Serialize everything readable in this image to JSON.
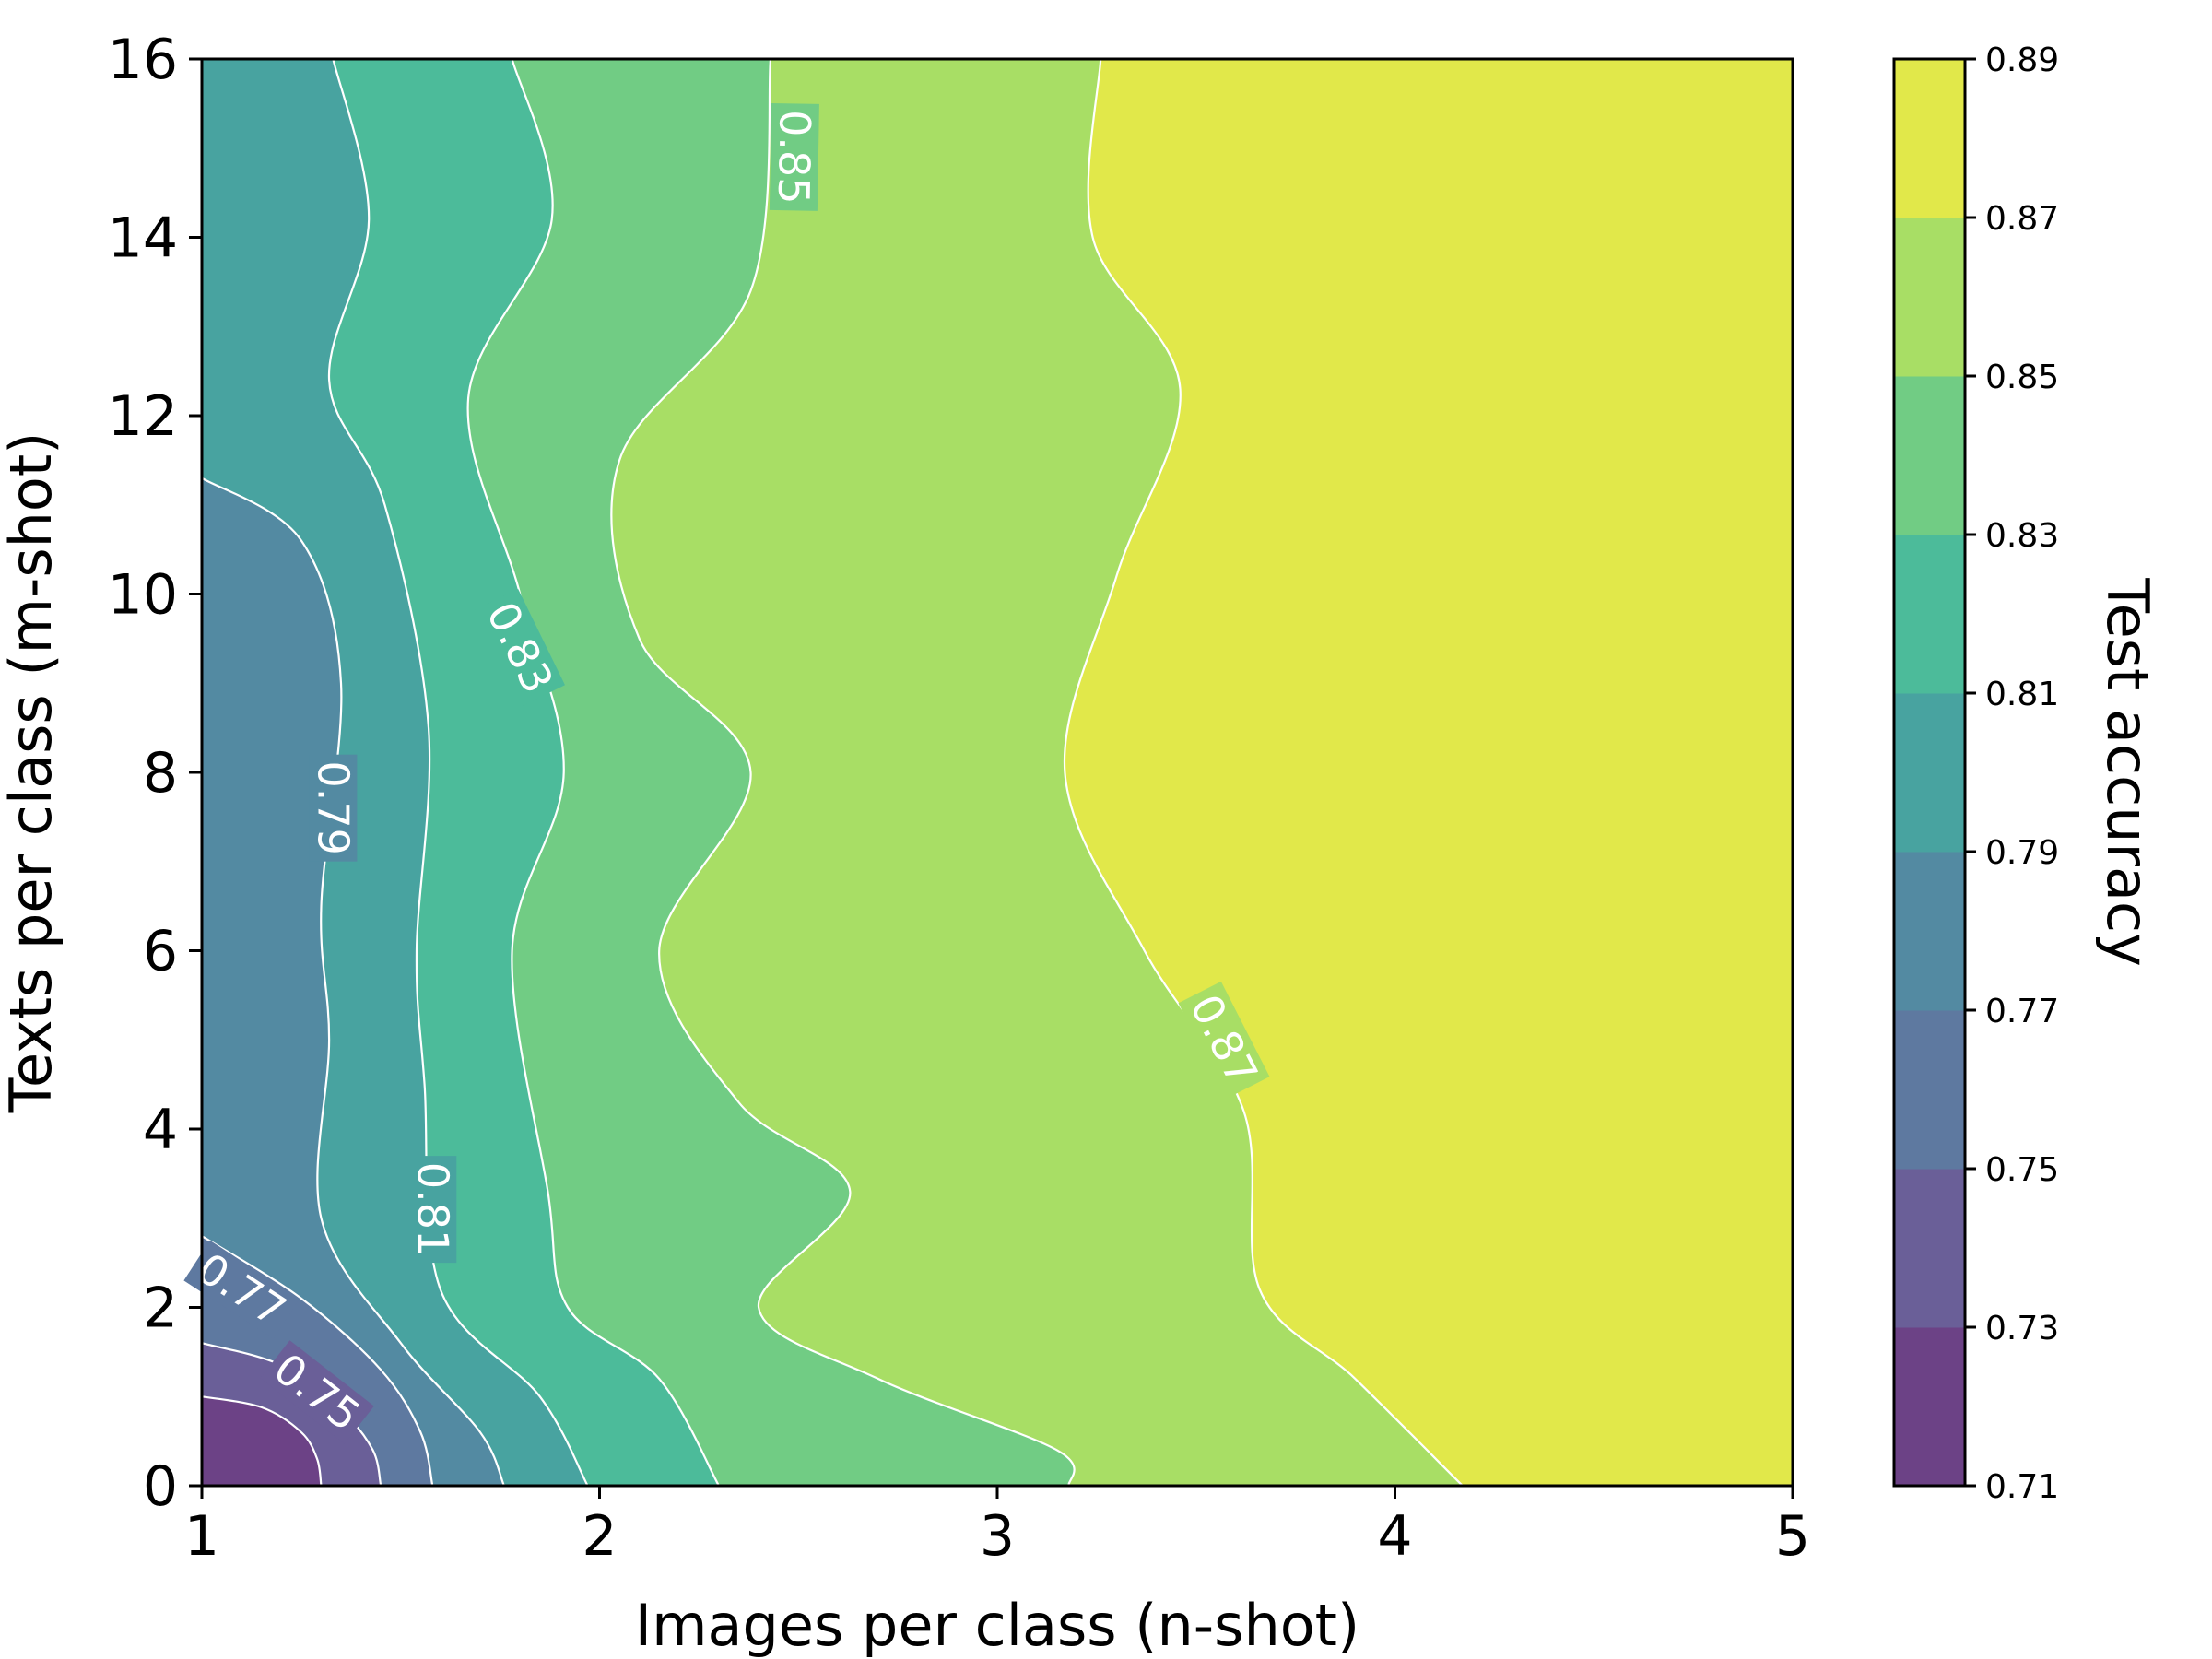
{
  "chart_data": {
    "type": "contour",
    "xlabel": "Images per class (n-shot)",
    "ylabel": "Texts per class (m-shot)",
    "colorbar_label": "Test accuracy",
    "xlim": [
      1,
      5
    ],
    "ylim": [
      0,
      16
    ],
    "x_ticks": [
      "1",
      "2",
      "3",
      "4",
      "5"
    ],
    "y_ticks": [
      "0",
      "2",
      "4",
      "6",
      "8",
      "10",
      "12",
      "14",
      "16"
    ],
    "levels": [
      0.71,
      0.73,
      0.75,
      0.77,
      0.79,
      0.81,
      0.83,
      0.85,
      0.87,
      0.89
    ],
    "level_labels": [
      "0.71",
      "0.73",
      "0.75",
      "0.77",
      "0.79",
      "0.81",
      "0.83",
      "0.85",
      "0.87",
      "0.89"
    ],
    "band_colors": [
      "#6c4286",
      "#6a5f98",
      "#5e79a0",
      "#538aa2",
      "#48a3a0",
      "#4cbb9a",
      "#71cc84",
      "#a8de65",
      "#e1e84a"
    ],
    "contour_lines": [
      {
        "level": 0.73,
        "points": [
          [
            1.0,
            1.0
          ],
          [
            1.15,
            0.88
          ],
          [
            1.25,
            0.6
          ],
          [
            1.29,
            0.3
          ],
          [
            1.3,
            0.0
          ]
        ]
      },
      {
        "level": 0.75,
        "points": [
          [
            1.0,
            1.6
          ],
          [
            1.2,
            1.35
          ],
          [
            1.35,
            0.85
          ],
          [
            1.43,
            0.4
          ],
          [
            1.45,
            0.0
          ]
        ]
      },
      {
        "level": 0.77,
        "points": [
          [
            1.0,
            2.8
          ],
          [
            1.25,
            2.1
          ],
          [
            1.45,
            1.3
          ],
          [
            1.55,
            0.6
          ],
          [
            1.58,
            0.0
          ]
        ]
      },
      {
        "level": 0.79,
        "points": [
          [
            1.0,
            11.3
          ],
          [
            1.25,
            10.6
          ],
          [
            1.35,
            9.0
          ],
          [
            1.3,
            6.5
          ],
          [
            1.32,
            5.0
          ],
          [
            1.3,
            3.0
          ],
          [
            1.5,
            1.6
          ],
          [
            1.7,
            0.6
          ],
          [
            1.76,
            0.0
          ]
        ]
      },
      {
        "level": 0.81,
        "points": [
          [
            1.33,
            16.0
          ],
          [
            1.42,
            14.2
          ],
          [
            1.32,
            12.4
          ],
          [
            1.46,
            11.0
          ],
          [
            1.57,
            8.5
          ],
          [
            1.54,
            6.0
          ],
          [
            1.56,
            4.5
          ],
          [
            1.6,
            2.2
          ],
          [
            1.85,
            1.0
          ],
          [
            1.97,
            0.0
          ]
        ]
      },
      {
        "level": 0.83,
        "points": [
          [
            1.78,
            16.0
          ],
          [
            1.88,
            14.2
          ],
          [
            1.67,
            12.2
          ],
          [
            1.8,
            10.0
          ],
          [
            1.91,
            8.0
          ],
          [
            1.78,
            6.0
          ],
          [
            1.87,
            3.3
          ],
          [
            1.92,
            2.0
          ],
          [
            2.15,
            1.2
          ],
          [
            2.3,
            0.0
          ]
        ]
      },
      {
        "level": 0.85,
        "points": [
          [
            2.43,
            16.0
          ],
          [
            2.38,
            13.4
          ],
          [
            2.05,
            11.5
          ],
          [
            2.1,
            9.5
          ],
          [
            2.38,
            8.0
          ],
          [
            2.15,
            6.0
          ],
          [
            2.35,
            4.3
          ],
          [
            2.63,
            3.3
          ],
          [
            2.4,
            2.0
          ],
          [
            2.7,
            1.2
          ],
          [
            3.15,
            0.4
          ],
          [
            3.18,
            0.0
          ]
        ]
      },
      {
        "level": 0.87,
        "points": [
          [
            3.26,
            16.0
          ],
          [
            3.24,
            14.0
          ],
          [
            3.46,
            12.3
          ],
          [
            3.3,
            10.2
          ],
          [
            3.17,
            8.0
          ],
          [
            3.37,
            6.0
          ],
          [
            3.62,
            4.2
          ],
          [
            3.66,
            2.2
          ],
          [
            3.9,
            1.2
          ],
          [
            4.17,
            0.0
          ]
        ]
      }
    ],
    "contour_labels": [
      {
        "text": "0.85",
        "x": 2.49,
        "y": 14.9,
        "angle": 91
      },
      {
        "text": "0.83",
        "x": 1.8,
        "y": 9.4,
        "angle": 64
      },
      {
        "text": "0.79",
        "x": 1.33,
        "y": 7.6,
        "angle": 90
      },
      {
        "text": "0.81",
        "x": 1.58,
        "y": 3.1,
        "angle": 90
      },
      {
        "text": "0.87",
        "x": 3.57,
        "y": 5.0,
        "angle": 63
      },
      {
        "text": "0.77",
        "x": 1.1,
        "y": 2.2,
        "angle": 33
      },
      {
        "text": "0.75",
        "x": 1.29,
        "y": 1.05,
        "angle": 38
      }
    ]
  }
}
